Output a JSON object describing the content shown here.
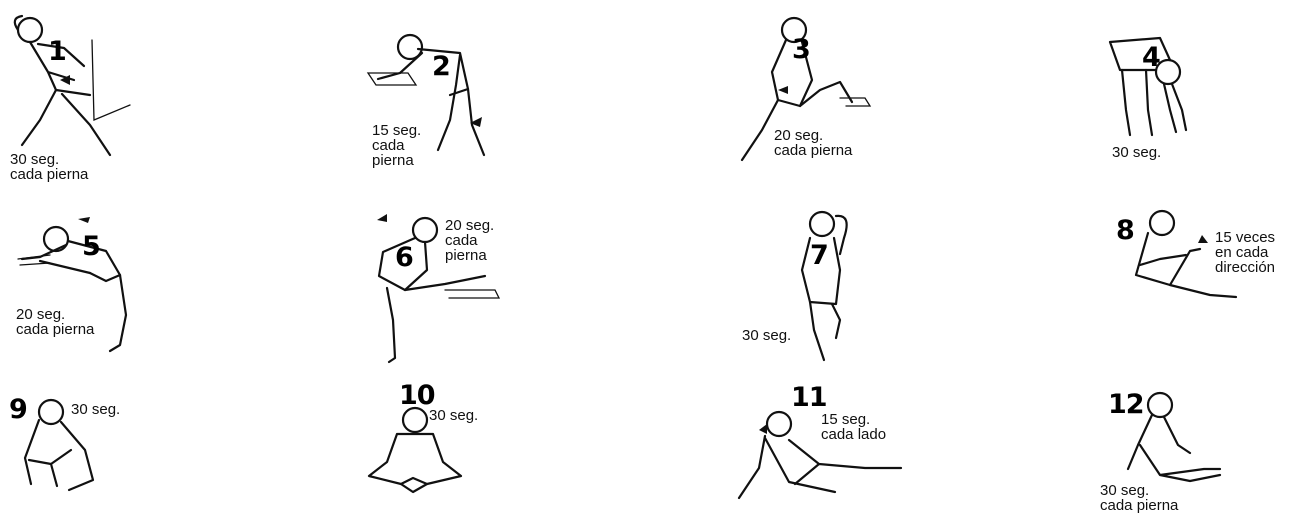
{
  "exercises": [
    {
      "number": "1",
      "caption": "30 seg.\ncada pierna"
    },
    {
      "number": "2",
      "caption": "15 seg.\ncada\npierna"
    },
    {
      "number": "3",
      "caption": "20 seg.\ncada pierna"
    },
    {
      "number": "4",
      "caption": "30 seg."
    },
    {
      "number": "5",
      "caption": "20 seg.\ncada pierna"
    },
    {
      "number": "6",
      "caption": "20 seg.\ncada\npierna"
    },
    {
      "number": "7",
      "caption": "30 seg."
    },
    {
      "number": "8",
      "caption": "15 veces\nen cada\ndirección"
    },
    {
      "number": "9",
      "caption": "30 seg."
    },
    {
      "number": "10",
      "caption": "30 seg."
    },
    {
      "number": "11",
      "caption": "15 seg.\ncada lado"
    },
    {
      "number": "12",
      "caption": "30 seg.\ncada pierna"
    }
  ]
}
